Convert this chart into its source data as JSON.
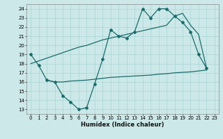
{
  "xlabel": "Humidex (Indice chaleur)",
  "bg_color": "#cce8e8",
  "line_color": "#1a6b6b",
  "grid_color": "#aad4d4",
  "xlim": [
    -0.5,
    23.5
  ],
  "ylim": [
    12.5,
    24.5
  ],
  "yticks": [
    13,
    14,
    15,
    16,
    17,
    18,
    19,
    20,
    21,
    22,
    23,
    24
  ],
  "xticks": [
    0,
    1,
    2,
    3,
    4,
    5,
    6,
    7,
    8,
    9,
    10,
    11,
    12,
    13,
    14,
    15,
    16,
    17,
    18,
    19,
    20,
    21,
    22,
    23
  ],
  "line1_x": [
    0,
    1,
    2,
    3,
    4,
    5,
    6,
    7,
    8,
    9,
    10,
    11,
    12,
    13,
    14,
    15,
    16,
    17,
    18,
    19,
    20,
    21,
    22
  ],
  "line1_y": [
    19.0,
    17.8,
    16.2,
    16.0,
    14.5,
    13.8,
    13.0,
    13.2,
    15.8,
    18.5,
    21.7,
    21.0,
    20.8,
    21.5,
    24.0,
    23.0,
    24.0,
    24.0,
    23.2,
    22.5,
    21.5,
    19.0,
    17.5
  ],
  "line2_x": [
    0,
    1,
    2,
    3,
    4,
    5,
    6,
    7,
    8,
    9,
    10,
    11,
    12,
    13,
    14,
    15,
    16,
    17,
    18,
    19,
    20,
    21,
    22
  ],
  "line2_y": [
    18.0,
    18.3,
    18.6,
    18.9,
    19.2,
    19.5,
    19.8,
    20.0,
    20.3,
    20.6,
    20.8,
    21.0,
    21.2,
    21.4,
    21.6,
    21.8,
    22.0,
    22.2,
    23.2,
    23.5,
    22.2,
    21.2,
    17.5
  ],
  "line3_x": [
    2,
    3,
    4,
    5,
    6,
    7,
    8,
    9,
    10,
    11,
    12,
    13,
    14,
    15,
    16,
    17,
    18,
    19,
    20,
    21,
    22
  ],
  "line3_y": [
    16.2,
    16.0,
    16.0,
    16.1,
    16.15,
    16.2,
    16.3,
    16.4,
    16.5,
    16.55,
    16.6,
    16.65,
    16.7,
    16.75,
    16.85,
    16.9,
    17.0,
    17.05,
    17.1,
    17.2,
    17.3
  ]
}
